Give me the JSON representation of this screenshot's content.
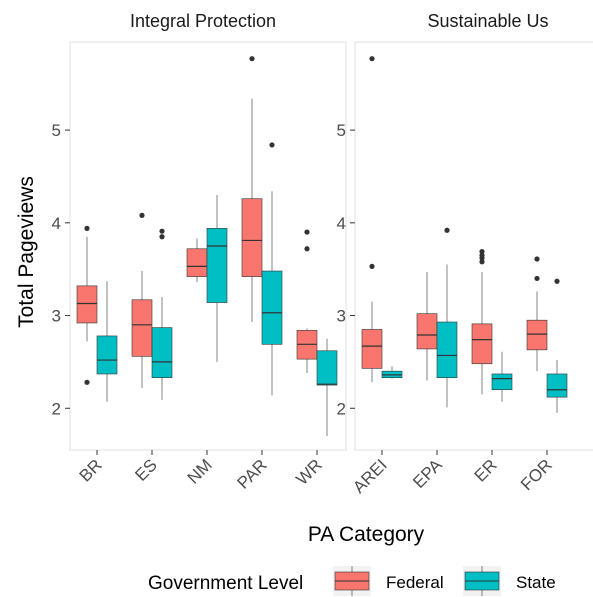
{
  "chart_data": {
    "type": "box",
    "xlabel": "PA Category",
    "ylabel": "Total Pageviews",
    "ylim": [
      1.55,
      5.95
    ],
    "y_ticks": [
      "2",
      "3",
      "4",
      "5"
    ],
    "grid": false,
    "legend": {
      "title": "Government Level",
      "position": "bottom",
      "entries": [
        {
          "name": "Federal",
          "color": "#F8766D"
        },
        {
          "name": "State",
          "color": "#00BFC4"
        }
      ]
    },
    "panels": [
      {
        "title": "Integral Protection",
        "categories": [
          "BR",
          "ES",
          "NM",
          "PAR",
          "WR"
        ],
        "series": [
          {
            "name": "Federal",
            "boxes": [
              {
                "min": 2.72,
                "q1": 2.92,
                "median": 3.13,
                "q3": 3.32,
                "max": 3.85,
                "outliers": [
                  3.94,
                  2.28
                ]
              },
              {
                "min": 2.22,
                "q1": 2.56,
                "median": 2.9,
                "q3": 3.17,
                "max": 3.48,
                "outliers": [
                  4.08
                ]
              },
              {
                "min": 3.36,
                "q1": 3.42,
                "median": 3.53,
                "q3": 3.72,
                "max": 3.83,
                "outliers": []
              },
              {
                "min": 2.93,
                "q1": 3.42,
                "median": 3.81,
                "q3": 4.26,
                "max": 5.34,
                "outliers": [
                  5.77
                ]
              },
              {
                "min": 2.38,
                "q1": 2.53,
                "median": 2.69,
                "q3": 2.84,
                "max": 2.86,
                "outliers": [
                  3.9,
                  3.72
                ]
              }
            ]
          },
          {
            "name": "State",
            "boxes": [
              {
                "min": 2.07,
                "q1": 2.37,
                "median": 2.52,
                "q3": 2.78,
                "max": 3.37,
                "outliers": []
              },
              {
                "min": 2.09,
                "q1": 2.33,
                "median": 2.5,
                "q3": 2.87,
                "max": 3.2,
                "outliers": [
                  3.91,
                  3.85
                ]
              },
              {
                "min": 2.5,
                "q1": 3.14,
                "median": 3.75,
                "q3": 3.94,
                "max": 4.3,
                "outliers": []
              },
              {
                "min": 2.14,
                "q1": 2.69,
                "median": 3.03,
                "q3": 3.48,
                "max": 4.34,
                "outliers": [
                  4.84
                ]
              },
              {
                "min": 1.7,
                "q1": 2.25,
                "median": 2.26,
                "q3": 2.62,
                "max": 2.75,
                "outliers": []
              }
            ]
          }
        ]
      },
      {
        "title": "Sustainable Us",
        "categories": [
          "AREI",
          "EPA",
          "ER",
          "FOR"
        ],
        "series": [
          {
            "name": "Federal",
            "boxes": [
              {
                "min": 2.28,
                "q1": 2.43,
                "median": 2.67,
                "q3": 2.85,
                "max": 3.15,
                "outliers": [
                  5.77,
                  3.53
                ]
              },
              {
                "min": 2.3,
                "q1": 2.64,
                "median": 2.79,
                "q3": 3.02,
                "max": 3.47,
                "outliers": []
              },
              {
                "min": 2.15,
                "q1": 2.48,
                "median": 2.74,
                "q3": 2.91,
                "max": 3.47,
                "outliers": [
                  3.69,
                  3.65,
                  3.62,
                  3.58
                ]
              },
              {
                "min": 2.4,
                "q1": 2.63,
                "median": 2.8,
                "q3": 2.95,
                "max": 3.26,
                "outliers": [
                  3.61,
                  3.4
                ]
              }
            ]
          },
          {
            "name": "State",
            "boxes": [
              {
                "min": 2.32,
                "q1": 2.33,
                "median": 2.36,
                "q3": 2.4,
                "max": 2.45,
                "outliers": []
              },
              {
                "min": 2.01,
                "q1": 2.33,
                "median": 2.57,
                "q3": 2.93,
                "max": 3.55,
                "outliers": [
                  3.92
                ]
              },
              {
                "min": 2.07,
                "q1": 2.2,
                "median": 2.32,
                "q3": 2.37,
                "max": 2.61,
                "outliers": []
              },
              {
                "min": 1.95,
                "q1": 2.12,
                "median": 2.2,
                "q3": 2.37,
                "max": 2.52,
                "outliers": [
                  3.37
                ]
              }
            ]
          }
        ]
      }
    ]
  }
}
